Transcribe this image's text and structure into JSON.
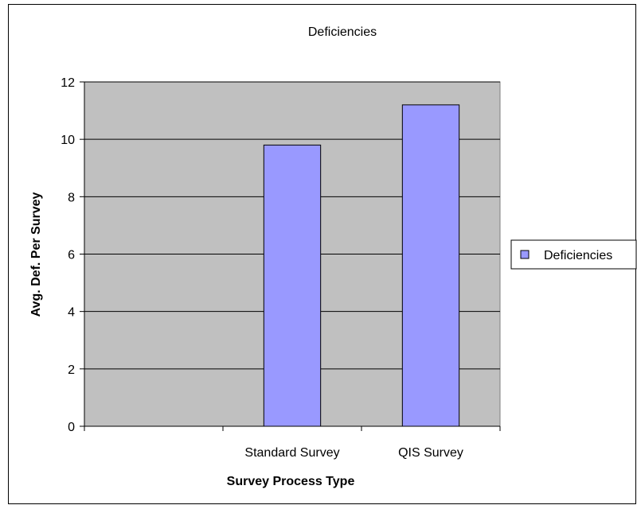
{
  "chart_data": {
    "type": "bar",
    "title": "Deficiencies",
    "xlabel": "Survey Process Type",
    "ylabel": "Avg. Def. Per Survey",
    "categories": [
      "",
      "Standard Survey",
      "QIS Survey"
    ],
    "series": [
      {
        "name": "Deficiencies",
        "values": [
          null,
          9.8,
          11.2
        ],
        "color": "#9999ff"
      }
    ],
    "ylim": [
      0,
      12
    ],
    "yticks": [
      "0",
      "2",
      "4",
      "6",
      "8",
      "10",
      "12"
    ],
    "grid": true,
    "plot_background": "#c0c0c0",
    "legend_position": "right"
  }
}
